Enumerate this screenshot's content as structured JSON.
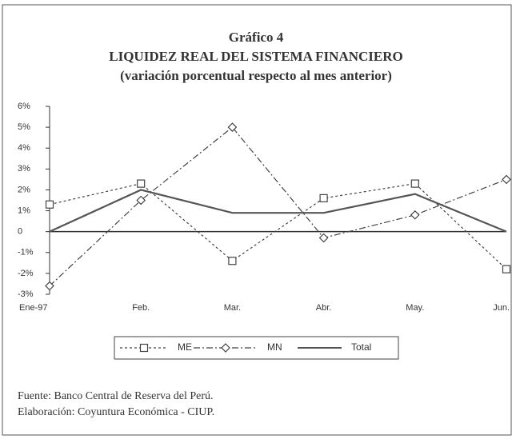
{
  "chart_data": {
    "type": "line",
    "title": "Gráfico 4",
    "subtitle": "LIQUIDEZ REAL DEL SISTEMA FINANCIERO",
    "subtitle2": "(variación porcentual respecto al mes anterior)",
    "categories": [
      "Ene-97",
      "Feb.",
      "Mar.",
      "Abr.",
      "May.",
      "Jun."
    ],
    "series": [
      {
        "name": "ME",
        "color": "#444444",
        "line_style": "dotted",
        "marker": "square",
        "values": [
          1.3,
          2.3,
          -1.4,
          1.6,
          2.3,
          -1.8
        ]
      },
      {
        "name": "MN",
        "color": "#444444",
        "line_style": "dashdot",
        "marker": "diamond",
        "values": [
          -2.6,
          1.5,
          5.0,
          -0.3,
          0.8,
          2.5
        ]
      },
      {
        "name": "Total",
        "color": "#555555",
        "line_style": "solid",
        "marker": "none",
        "values": [
          0,
          2.0,
          0.9,
          0.9,
          1.8,
          0
        ]
      }
    ],
    "ylim": [
      -3,
      6
    ],
    "yticks": [
      {
        "value": 6,
        "label": "6%"
      },
      {
        "value": 5,
        "label": "5%"
      },
      {
        "value": 4,
        "label": "4%"
      },
      {
        "value": 3,
        "label": "3%"
      },
      {
        "value": 2,
        "label": "2%"
      },
      {
        "value": 1,
        "label": "1%"
      },
      0,
      {
        "value": -1,
        "label": "-1%"
      },
      {
        "value": -2,
        "label": "-2%"
      },
      {
        "value": -3,
        "label": "-3%"
      }
    ],
    "legend": "bottom",
    "source": "Fuente: Banco Central de Reserva del Perú.",
    "credit": "Elaboración: Coyuntura Económica - CIUP."
  }
}
